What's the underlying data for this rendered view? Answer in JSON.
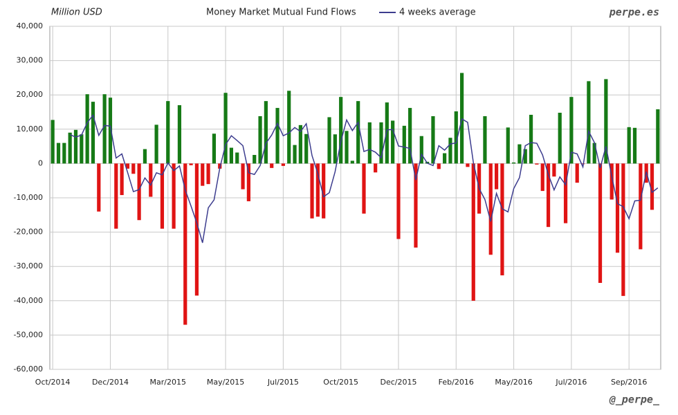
{
  "chart_data": {
    "type": "bar",
    "title": "Money Market Mutual Fund Flows",
    "y_label": "Million USD",
    "watermark": "perpe.es",
    "credit": "@_perpe_",
    "categories": [
      "Oct/2014",
      null,
      null,
      null,
      null,
      null,
      null,
      null,
      null,
      null,
      "Dec/2014",
      null,
      null,
      null,
      null,
      null,
      null,
      null,
      null,
      null,
      "Mar/2015",
      null,
      null,
      null,
      null,
      null,
      null,
      null,
      null,
      null,
      "May/2015",
      null,
      null,
      null,
      null,
      null,
      null,
      null,
      null,
      null,
      "Jul/2015",
      null,
      null,
      null,
      null,
      null,
      null,
      null,
      null,
      null,
      "Oct/2015",
      null,
      null,
      null,
      null,
      null,
      null,
      null,
      null,
      null,
      "Dec/2015",
      null,
      null,
      null,
      null,
      null,
      null,
      null,
      null,
      null,
      "Feb/2016",
      null,
      null,
      null,
      null,
      null,
      null,
      null,
      null,
      null,
      "May/2016",
      null,
      null,
      null,
      null,
      null,
      null,
      null,
      null,
      null,
      "Jul/2016",
      null,
      null,
      null,
      null,
      null,
      null,
      null,
      null,
      null,
      "Sep/2016",
      null,
      null,
      null,
      null,
      null
    ],
    "series": [
      {
        "type": "bar",
        "positive_color": "#167a16",
        "negative_color": "#e01414",
        "values": [
          12700,
          6000,
          6000,
          9000,
          9800,
          8500,
          20200,
          18000,
          -14000,
          20200,
          19200,
          -19000,
          -9200,
          -1500,
          -3000,
          -16500,
          4200,
          -9700,
          11300,
          -19000,
          18200,
          -19000,
          17000,
          -47000,
          -500,
          -38500,
          -6500,
          -6000,
          8700,
          -1500,
          20600,
          4600,
          3200,
          -7500,
          -11000,
          2500,
          13800,
          18200,
          -1300,
          16200,
          -700,
          21200,
          5400,
          11200,
          8600,
          -16000,
          -15500,
          -16000,
          13500,
          8500,
          19400,
          9500,
          800,
          18200,
          -14600,
          12000,
          -2600,
          12000,
          17800,
          12500,
          -22000,
          11000,
          16200,
          -24500,
          8000,
          500,
          13800,
          -1600,
          3000,
          7500,
          15200,
          26400,
          -1000,
          -40000,
          -14600,
          13800,
          -26600,
          -7500,
          -32600,
          10500,
          300,
          5600,
          4200,
          14200,
          -300,
          -8000,
          -18500,
          -3800,
          14800,
          -17400,
          19400,
          -5600,
          -200,
          24000,
          6000,
          -34800,
          24600,
          -10500,
          -26000,
          -38600,
          10600,
          10400,
          -25000,
          -5600,
          -13500,
          15800
        ]
      },
      {
        "type": "line",
        "name": "4 weeks average",
        "color": "#3c3c8e",
        "values": [
          null,
          null,
          null,
          8400,
          7700,
          8300,
          11900,
          14100,
          8200,
          11100,
          10900,
          1600,
          2800,
          -2600,
          -8200,
          -7600,
          -4200,
          -6300,
          -2700,
          -3300,
          200,
          -2100,
          -700,
          -7700,
          -12400,
          -17300,
          -23100,
          -12900,
          -10600,
          -1300,
          5500,
          8100,
          6700,
          5200,
          -2700,
          -3200,
          -600,
          5900,
          8300,
          11700,
          8100,
          8900,
          10500,
          9300,
          11600,
          2300,
          -2900,
          -9700,
          -8500,
          -2400,
          6400,
          12700,
          9600,
          12000,
          3500,
          4100,
          3300,
          1700,
          9800,
          9900,
          5100,
          4800,
          4400,
          -4800,
          2700,
          100,
          -600,
          5200,
          3900,
          5700,
          6000,
          13000,
          12000,
          200,
          -7300,
          -10500,
          -16900,
          -8700,
          -13200,
          -14100,
          -7300,
          -4100,
          5200,
          6100,
          5900,
          2500,
          -3200,
          -7700,
          -3900,
          -6200,
          3300,
          2800,
          -1000,
          9400,
          6100,
          -1300,
          5000,
          -3700,
          -11700,
          -12600,
          -16100,
          -10900,
          -10700,
          -2400,
          -8400,
          -7100
        ]
      }
    ],
    "ylim": [
      -60000,
      40000
    ],
    "yticks": [
      {
        "value": -60000,
        "label": "-60,000"
      },
      {
        "value": -50000,
        "label": "-50,000"
      },
      {
        "value": -40000,
        "label": "-40,000"
      },
      {
        "value": -30000,
        "label": "-30,000"
      },
      {
        "value": -20000,
        "label": "-20,000"
      },
      {
        "value": -10000,
        "label": "-10,000"
      },
      0,
      {
        "value": 10000,
        "label": "10,000"
      },
      {
        "value": 20000,
        "label": "20,000"
      },
      {
        "value": 30000,
        "label": "30,000"
      },
      {
        "value": 40000,
        "label": "40,000"
      }
    ],
    "grid": true
  }
}
